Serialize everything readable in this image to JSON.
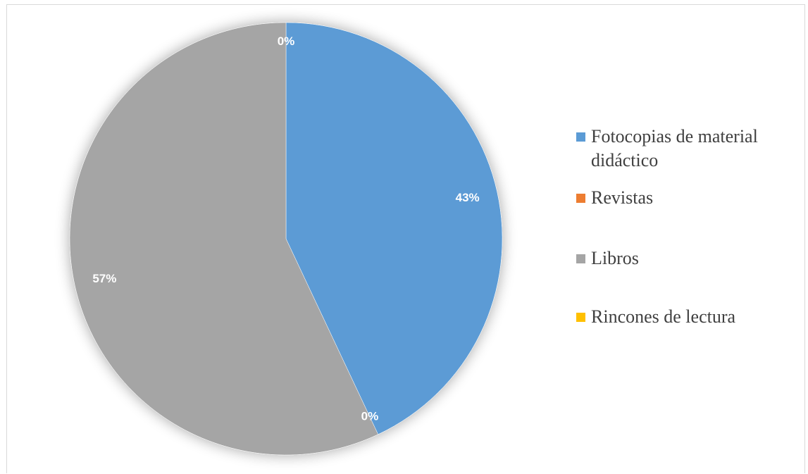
{
  "chart_data": {
    "type": "pie",
    "start_angle_deg": 0,
    "direction": "clockwise",
    "slices": [
      {
        "label": "Fotocopias de material didáctico",
        "value": 43,
        "data_label": "43%",
        "color": "#5b9bd5"
      },
      {
        "label": "Revistas",
        "value": 0,
        "data_label": "0%",
        "color": "#ed7d31"
      },
      {
        "label": "Libros",
        "value": 57,
        "data_label": "57%",
        "color": "#a5a5a5"
      },
      {
        "label": "Rincones de lectura",
        "value": 0,
        "data_label": "0%",
        "color": "#ffc000"
      }
    ],
    "legend": {
      "position": "right",
      "entries": [
        "Fotocopias de material didáctico",
        "Revistas",
        "Libros",
        "Rincones de lectura"
      ]
    }
  }
}
